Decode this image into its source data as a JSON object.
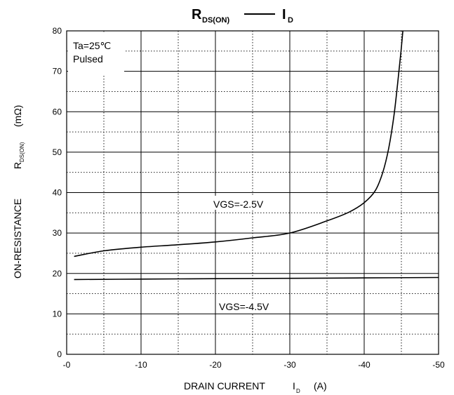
{
  "chart_data": {
    "type": "line",
    "title": {
      "left_main": "R",
      "left_sub": "DS(ON)",
      "separator": "—",
      "right_main": "I",
      "right_sub": "D"
    },
    "xlabel": {
      "prefix": "DRAIN CURRENT",
      "symbol": "I",
      "sub": "D",
      "unit": "(A)"
    },
    "ylabel": {
      "prefix": "ON-RESISTANCE",
      "symbol": "R",
      "sub": "DS(ON)",
      "unit": "(mΩ)"
    },
    "xlim": [
      0,
      -50
    ],
    "ylim": [
      0,
      80
    ],
    "x_ticks": [
      0,
      -10,
      -20,
      -30,
      -40,
      -50
    ],
    "x_tick_labels": [
      "-0",
      "-10",
      "-20",
      "-30",
      "-40",
      "-50"
    ],
    "y_ticks": [
      0,
      10,
      20,
      30,
      40,
      50,
      60,
      70,
      80
    ],
    "y_tick_labels": [
      "0",
      "10",
      "20",
      "30",
      "40",
      "50",
      "60",
      "70",
      "80"
    ],
    "grid": "major solid, minor dotted",
    "conditions": [
      "Ta=25℃",
      "Pulsed"
    ],
    "series": [
      {
        "name": "VGS=-2.5V",
        "x": [
          -1,
          -5,
          -10,
          -15,
          -20,
          -25,
          -30,
          -35,
          -38,
          -40,
          -41.5,
          -42.5,
          -43.3,
          -44,
          -44.5,
          -44.9,
          -45.2
        ],
        "y": [
          24.2,
          25.6,
          26.5,
          27.1,
          27.8,
          28.8,
          30.0,
          33.0,
          35.2,
          37.5,
          40.5,
          45.0,
          51.0,
          59.0,
          67.0,
          74.0,
          80.0
        ]
      },
      {
        "name": "VGS=-4.5V",
        "x": [
          -1,
          -10,
          -20,
          -30,
          -40,
          -50
        ],
        "y": [
          18.5,
          18.6,
          18.7,
          18.8,
          18.9,
          19.0
        ]
      }
    ]
  }
}
